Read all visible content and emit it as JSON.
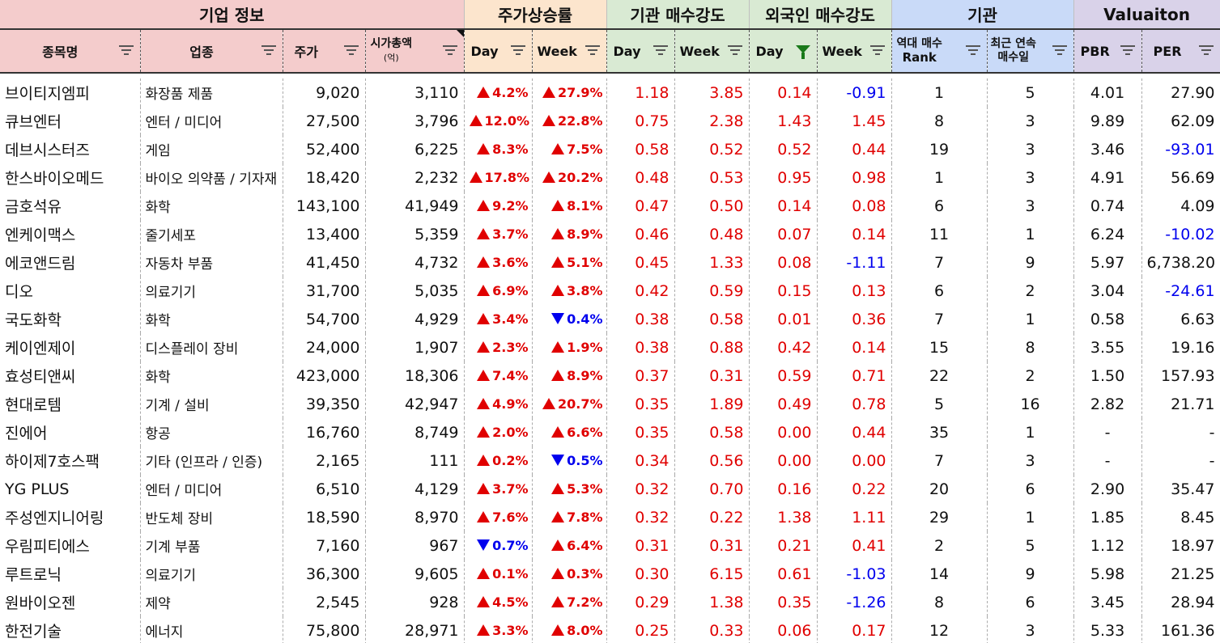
{
  "groups": {
    "company": "기업 정보",
    "price_rise": "주가상승률",
    "inst_strength": "기관 매수강도",
    "foreign_strength": "외국인 매수강도",
    "institution": "기관",
    "valuation": "Valuaiton"
  },
  "columns": {
    "name": "종목명",
    "industry": "업종",
    "price": "주가",
    "mktcap": "시가총액",
    "mktcap_unit": "(억)",
    "day": "Day",
    "week": "Week",
    "rank_line1": "역대 매수",
    "rank_line2": "Rank",
    "streak_line1": "최근 연속",
    "streak_line2": "매수일",
    "pbr": "PBR",
    "per": "PER"
  },
  "colors": {
    "company": "#f4cccc",
    "price_rise": "#fce5cd",
    "inst": "#d9ead3",
    "institution": "#c9daf8",
    "valuation": "#d9d2e9",
    "up": "#e00000",
    "down": "#0000ee",
    "active_filter": "#1a7a1a"
  },
  "rows": [
    {
      "name": "브이티지엠피",
      "industry": "화장품 제품",
      "price": "9,020",
      "cap": "3,110",
      "dDir": "up",
      "dPct": "4.2%",
      "wDir": "up",
      "wPct": "27.9%",
      "iDay": "1.18",
      "iWeek": "3.85",
      "fDay": "0.14",
      "fWeek": "-0.91",
      "rank": "1",
      "streak": "5",
      "pbr": "4.01",
      "per": "27.90"
    },
    {
      "name": "큐브엔터",
      "industry": "엔터 / 미디어",
      "price": "27,500",
      "cap": "3,796",
      "dDir": "up",
      "dPct": "12.0%",
      "wDir": "up",
      "wPct": "22.8%",
      "iDay": "0.75",
      "iWeek": "2.38",
      "fDay": "1.43",
      "fWeek": "1.45",
      "rank": "8",
      "streak": "3",
      "pbr": "9.89",
      "per": "62.09"
    },
    {
      "name": "데브시스터즈",
      "industry": "게임",
      "price": "52,400",
      "cap": "6,225",
      "dDir": "up",
      "dPct": "8.3%",
      "wDir": "up",
      "wPct": "7.5%",
      "iDay": "0.58",
      "iWeek": "0.52",
      "fDay": "0.52",
      "fWeek": "0.44",
      "rank": "19",
      "streak": "3",
      "pbr": "3.46",
      "per": "-93.01"
    },
    {
      "name": "한스바이오메드",
      "industry": "바이오 의약품 / 기자재",
      "price": "18,420",
      "cap": "2,232",
      "dDir": "up",
      "dPct": "17.8%",
      "wDir": "up",
      "wPct": "20.2%",
      "iDay": "0.48",
      "iWeek": "0.53",
      "fDay": "0.95",
      "fWeek": "0.98",
      "rank": "1",
      "streak": "3",
      "pbr": "4.91",
      "per": "56.69"
    },
    {
      "name": "금호석유",
      "industry": "화학",
      "price": "143,100",
      "cap": "41,949",
      "dDir": "up",
      "dPct": "9.2%",
      "wDir": "up",
      "wPct": "8.1%",
      "iDay": "0.47",
      "iWeek": "0.50",
      "fDay": "0.14",
      "fWeek": "0.08",
      "rank": "6",
      "streak": "3",
      "pbr": "0.74",
      "per": "4.09"
    },
    {
      "name": "엔케이맥스",
      "industry": "줄기세포",
      "price": "13,400",
      "cap": "5,359",
      "dDir": "up",
      "dPct": "3.7%",
      "wDir": "up",
      "wPct": "8.9%",
      "iDay": "0.46",
      "iWeek": "0.48",
      "fDay": "0.07",
      "fWeek": "0.14",
      "rank": "11",
      "streak": "1",
      "pbr": "6.24",
      "per": "-10.02"
    },
    {
      "name": "에코앤드림",
      "industry": "자동차 부품",
      "price": "41,450",
      "cap": "4,732",
      "dDir": "up",
      "dPct": "3.6%",
      "wDir": "up",
      "wPct": "5.1%",
      "iDay": "0.45",
      "iWeek": "1.33",
      "fDay": "0.08",
      "fWeek": "-1.11",
      "rank": "7",
      "streak": "9",
      "pbr": "5.97",
      "per": "6,738.20"
    },
    {
      "name": "디오",
      "industry": "의료기기",
      "price": "31,700",
      "cap": "5,035",
      "dDir": "up",
      "dPct": "6.9%",
      "wDir": "up",
      "wPct": "3.8%",
      "iDay": "0.42",
      "iWeek": "0.59",
      "fDay": "0.15",
      "fWeek": "0.13",
      "rank": "6",
      "streak": "2",
      "pbr": "3.04",
      "per": "-24.61"
    },
    {
      "name": "국도화학",
      "industry": "화학",
      "price": "54,700",
      "cap": "4,929",
      "dDir": "up",
      "dPct": "3.4%",
      "wDir": "dn",
      "wPct": "0.4%",
      "iDay": "0.38",
      "iWeek": "0.58",
      "fDay": "0.01",
      "fWeek": "0.36",
      "rank": "7",
      "streak": "1",
      "pbr": "0.58",
      "per": "6.63"
    },
    {
      "name": "케이엔제이",
      "industry": "디스플레이 장비",
      "price": "24,000",
      "cap": "1,907",
      "dDir": "up",
      "dPct": "2.3%",
      "wDir": "up",
      "wPct": "1.9%",
      "iDay": "0.38",
      "iWeek": "0.88",
      "fDay": "0.42",
      "fWeek": "0.14",
      "rank": "15",
      "streak": "8",
      "pbr": "3.55",
      "per": "19.16"
    },
    {
      "name": "효성티앤씨",
      "industry": "화학",
      "price": "423,000",
      "cap": "18,306",
      "dDir": "up",
      "dPct": "7.4%",
      "wDir": "up",
      "wPct": "8.9%",
      "iDay": "0.37",
      "iWeek": "0.31",
      "fDay": "0.59",
      "fWeek": "0.71",
      "rank": "22",
      "streak": "2",
      "pbr": "1.50",
      "per": "157.93"
    },
    {
      "name": "현대로템",
      "industry": "기계 / 설비",
      "price": "39,350",
      "cap": "42,947",
      "dDir": "up",
      "dPct": "4.9%",
      "wDir": "up",
      "wPct": "20.7%",
      "iDay": "0.35",
      "iWeek": "1.89",
      "fDay": "0.49",
      "fWeek": "0.78",
      "rank": "5",
      "streak": "16",
      "pbr": "2.82",
      "per": "21.71"
    },
    {
      "name": "진에어",
      "industry": "항공",
      "price": "16,760",
      "cap": "8,749",
      "dDir": "up",
      "dPct": "2.0%",
      "wDir": "up",
      "wPct": "6.6%",
      "iDay": "0.35",
      "iWeek": "0.58",
      "fDay": "0.00",
      "fWeek": "0.44",
      "rank": "35",
      "streak": "1",
      "pbr": "-",
      "per": "-"
    },
    {
      "name": "하이제7호스팩",
      "industry": "기타 (인프라 / 인증)",
      "price": "2,165",
      "cap": "111",
      "dDir": "up",
      "dPct": "0.2%",
      "wDir": "dn",
      "wPct": "0.5%",
      "iDay": "0.34",
      "iWeek": "0.56",
      "fDay": "0.00",
      "fWeek": "0.00",
      "rank": "7",
      "streak": "3",
      "pbr": "-",
      "per": "-"
    },
    {
      "name": "YG PLUS",
      "industry": "엔터 / 미디어",
      "price": "6,510",
      "cap": "4,129",
      "dDir": "up",
      "dPct": "3.7%",
      "wDir": "up",
      "wPct": "5.3%",
      "iDay": "0.32",
      "iWeek": "0.70",
      "fDay": "0.16",
      "fWeek": "0.22",
      "rank": "20",
      "streak": "6",
      "pbr": "2.90",
      "per": "35.47"
    },
    {
      "name": "주성엔지니어링",
      "industry": "반도체 장비",
      "price": "18,590",
      "cap": "8,970",
      "dDir": "up",
      "dPct": "7.6%",
      "wDir": "up",
      "wPct": "7.8%",
      "iDay": "0.32",
      "iWeek": "0.22",
      "fDay": "1.38",
      "fWeek": "1.11",
      "rank": "29",
      "streak": "1",
      "pbr": "1.85",
      "per": "8.45"
    },
    {
      "name": "우림피티에스",
      "industry": "기계 부품",
      "price": "7,160",
      "cap": "967",
      "dDir": "dn",
      "dPct": "0.7%",
      "wDir": "up",
      "wPct": "6.4%",
      "iDay": "0.31",
      "iWeek": "0.31",
      "fDay": "0.21",
      "fWeek": "0.41",
      "rank": "2",
      "streak": "5",
      "pbr": "1.12",
      "per": "18.97"
    },
    {
      "name": "루트로닉",
      "industry": "의료기기",
      "price": "36,300",
      "cap": "9,605",
      "dDir": "up",
      "dPct": "0.1%",
      "wDir": "up",
      "wPct": "0.3%",
      "iDay": "0.30",
      "iWeek": "6.15",
      "fDay": "0.61",
      "fWeek": "-1.03",
      "rank": "14",
      "streak": "9",
      "pbr": "5.98",
      "per": "21.25"
    },
    {
      "name": "원바이오젠",
      "industry": "제약",
      "price": "2,545",
      "cap": "928",
      "dDir": "up",
      "dPct": "4.5%",
      "wDir": "up",
      "wPct": "7.2%",
      "iDay": "0.29",
      "iWeek": "1.38",
      "fDay": "0.35",
      "fWeek": "-1.26",
      "rank": "8",
      "streak": "6",
      "pbr": "3.45",
      "per": "28.94"
    },
    {
      "name": "한전기술",
      "industry": "에너지",
      "price": "75,800",
      "cap": "28,971",
      "dDir": "up",
      "dPct": "3.3%",
      "wDir": "up",
      "wPct": "8.0%",
      "iDay": "0.25",
      "iWeek": "0.33",
      "fDay": "0.06",
      "fWeek": "0.17",
      "rank": "12",
      "streak": "3",
      "pbr": "5.33",
      "per": "161.36"
    }
  ]
}
